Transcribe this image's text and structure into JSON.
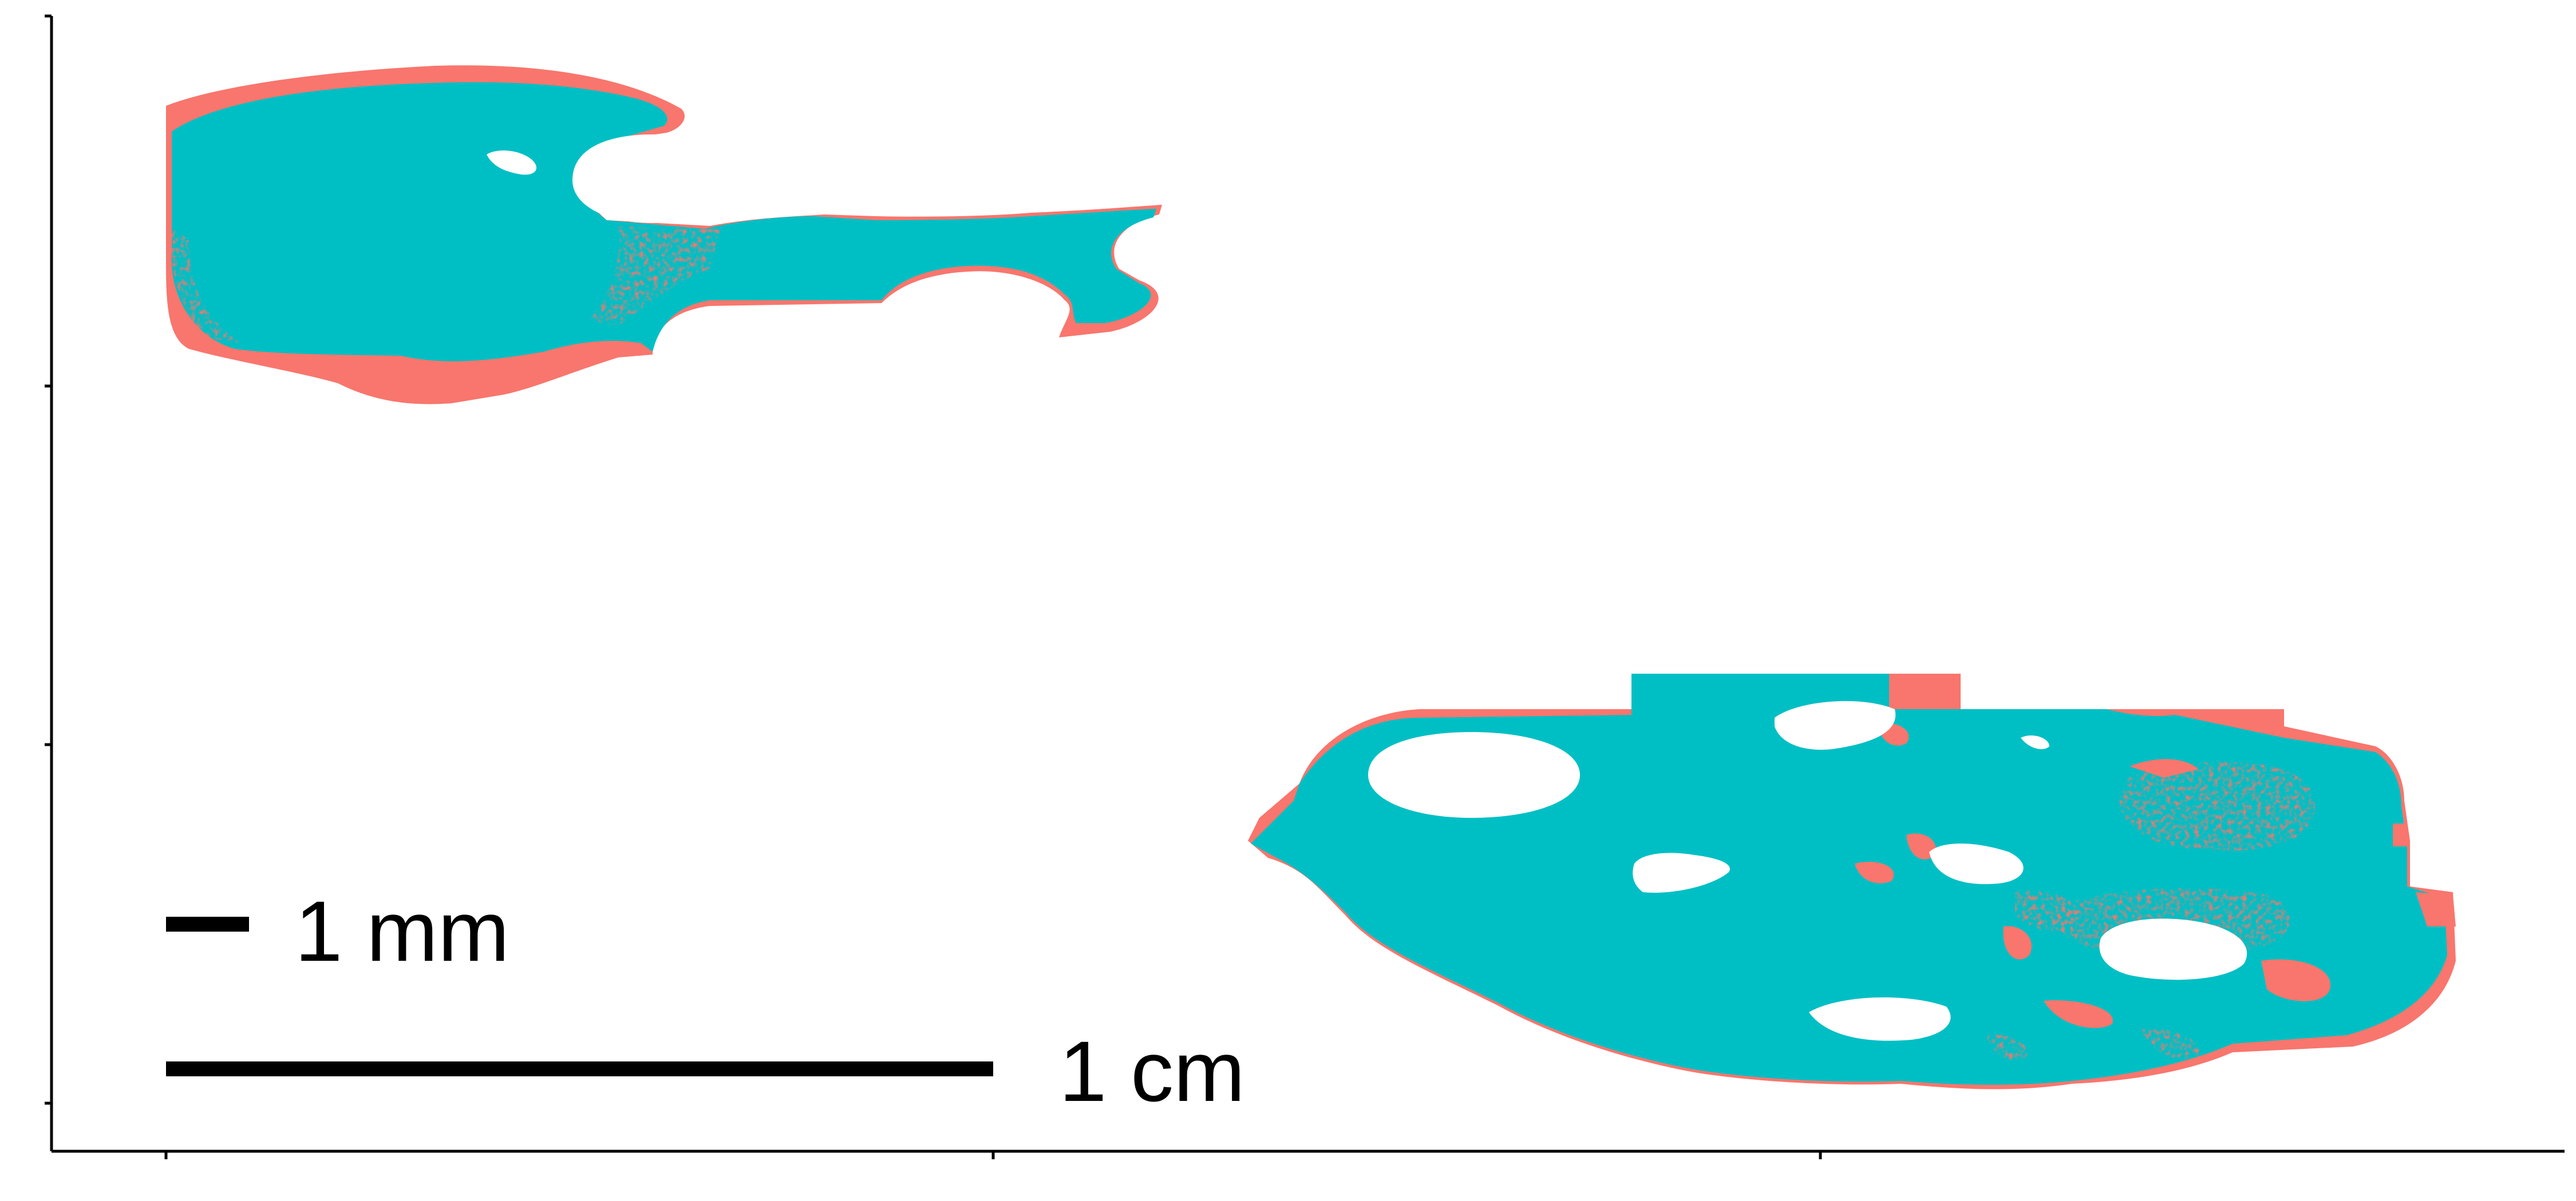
{
  "chart_data": {
    "type": "scatter",
    "title": "",
    "xlabel": "",
    "ylabel": "",
    "grid": false,
    "legend": "none",
    "x_tick_labels": [
      "",
      "",
      ""
    ],
    "y_tick_labels": [
      "",
      "",
      "",
      ""
    ],
    "series": [
      {
        "color": "#F8766D"
      },
      {
        "color": "#00BFC4"
      }
    ],
    "annotations": {
      "scale_bar_mm": "1 mm",
      "scale_bar_cm": "1 cm"
    }
  }
}
